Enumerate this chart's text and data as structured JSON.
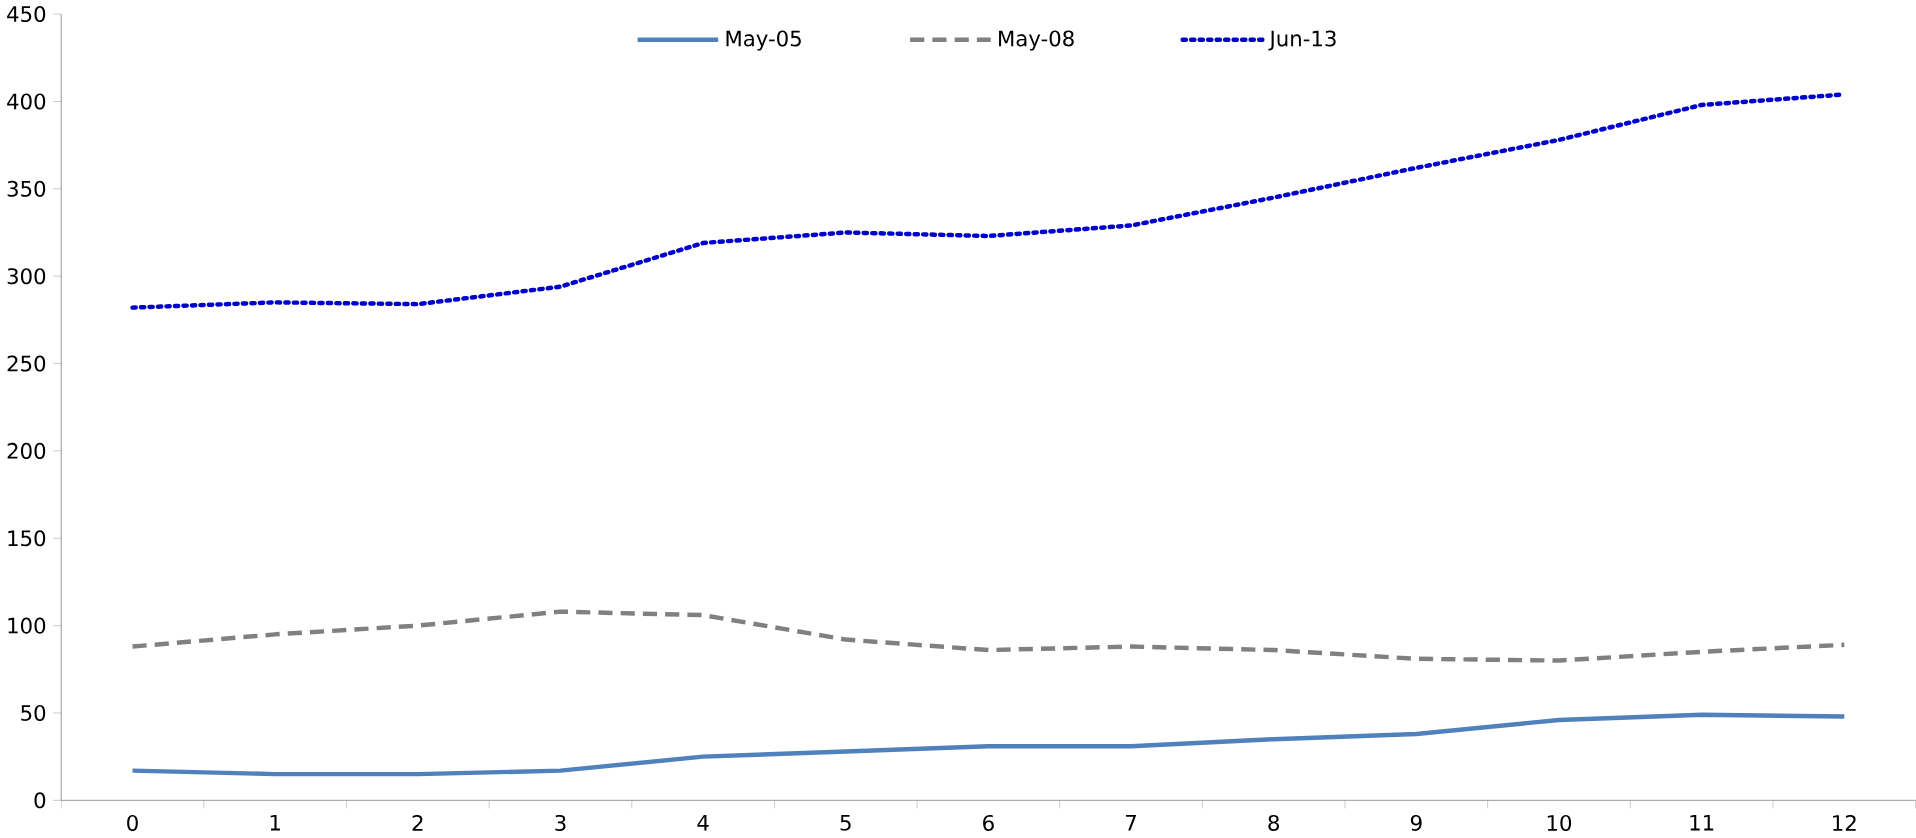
{
  "chart_data": {
    "type": "line",
    "categories": [
      "0",
      "1",
      "2",
      "3",
      "4",
      "5",
      "6",
      "7",
      "8",
      "9",
      "10",
      "11",
      "12"
    ],
    "series": [
      {
        "name": "May-05",
        "color": "#4f81bd",
        "line_style": "solid",
        "values": [
          17,
          15,
          15,
          17,
          25,
          28,
          31,
          31,
          35,
          38,
          46,
          49,
          48
        ]
      },
      {
        "name": "May-08",
        "color": "#808080",
        "line_style": "dashed",
        "values": [
          88,
          95,
          100,
          108,
          106,
          92,
          86,
          88,
          86,
          81,
          80,
          85,
          89
        ]
      },
      {
        "name": "Jun-13",
        "color": "#0000cc",
        "line_style": "dotted",
        "values": [
          282,
          285,
          284,
          294,
          319,
          325,
          323,
          329,
          345,
          362,
          378,
          398,
          404
        ]
      }
    ],
    "ylim": [
      0,
      450
    ],
    "yticks": [
      0,
      50,
      100,
      150,
      200,
      250,
      300,
      350,
      400,
      450
    ],
    "legend": "top",
    "marker": "none",
    "grid": false
  }
}
